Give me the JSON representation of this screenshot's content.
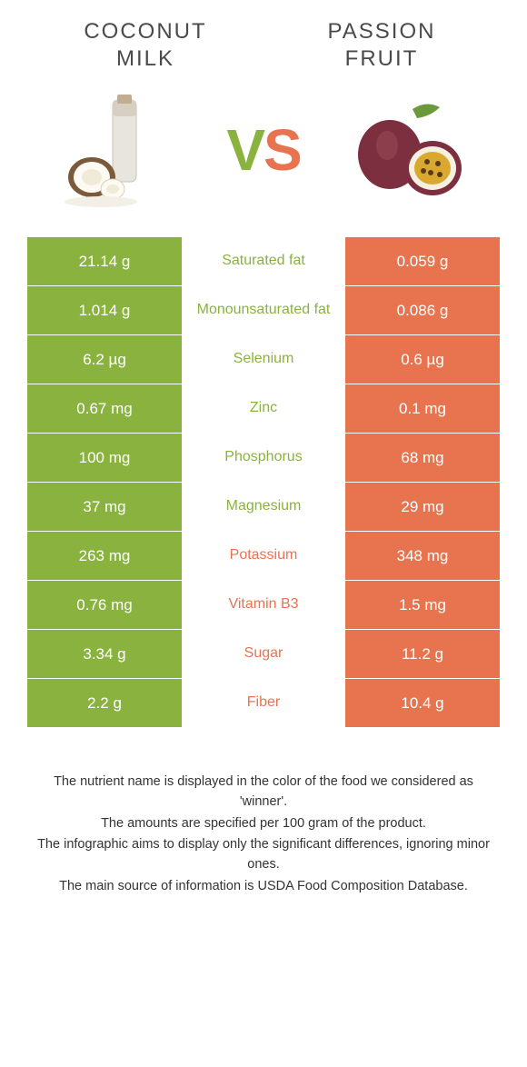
{
  "colors": {
    "left": "#8ab23f",
    "right": "#e8744f",
    "text_dark": "#4a4a4a"
  },
  "header": {
    "left_title_line1": "COCONUT",
    "left_title_line2": "MILK",
    "right_title_line1": "PASSION",
    "right_title_line2": "FRUIT",
    "vs_v": "V",
    "vs_s": "S"
  },
  "rows": [
    {
      "left": "21.14 g",
      "label": "Saturated fat",
      "right": "0.059 g",
      "winner": "left"
    },
    {
      "left": "1.014 g",
      "label": "Monounsaturated fat",
      "right": "0.086 g",
      "winner": "left"
    },
    {
      "left": "6.2 µg",
      "label": "Selenium",
      "right": "0.6 µg",
      "winner": "left"
    },
    {
      "left": "0.67 mg",
      "label": "Zinc",
      "right": "0.1 mg",
      "winner": "left"
    },
    {
      "left": "100 mg",
      "label": "Phosphorus",
      "right": "68 mg",
      "winner": "left"
    },
    {
      "left": "37 mg",
      "label": "Magnesium",
      "right": "29 mg",
      "winner": "left"
    },
    {
      "left": "263 mg",
      "label": "Potassium",
      "right": "348 mg",
      "winner": "right"
    },
    {
      "left": "0.76 mg",
      "label": "Vitamin B3",
      "right": "1.5 mg",
      "winner": "right"
    },
    {
      "left": "3.34 g",
      "label": "Sugar",
      "right": "11.2 g",
      "winner": "right"
    },
    {
      "left": "2.2 g",
      "label": "Fiber",
      "right": "10.4 g",
      "winner": "right"
    }
  ],
  "footer": {
    "line1": "The nutrient name is displayed in the color of the food we considered as 'winner'.",
    "line2": "The amounts are specified per 100 gram of the product.",
    "line3": "The infographic aims to display only the significant differences, ignoring minor ones.",
    "line4": "The main source of information is USDA Food Composition Database."
  }
}
